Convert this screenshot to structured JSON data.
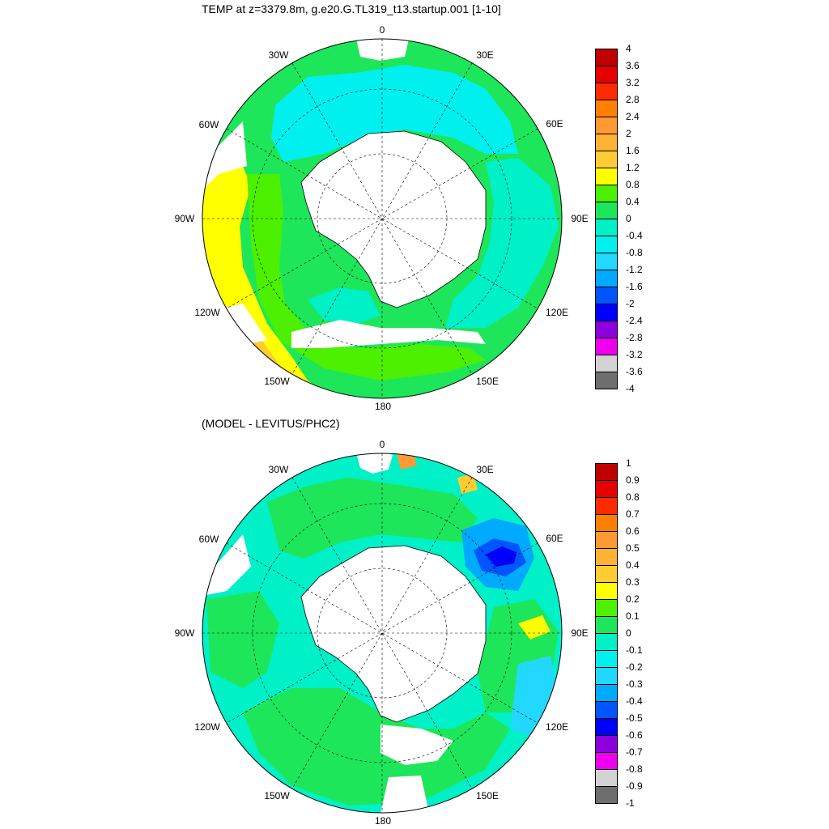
{
  "top_panel": {
    "title": "TEMP at z=3379.8m, g.e20.G.TL319_t13.startup.001 [1-10]",
    "longitude_labels": [
      "0",
      "30E",
      "60E",
      "90E",
      "120E",
      "150E",
      "180",
      "150W",
      "120W",
      "90W",
      "60W",
      "30W"
    ],
    "colorbar": {
      "levels": [
        "4",
        "3.6",
        "3.2",
        "2.8",
        "2.4",
        "2",
        "1.6",
        "1.2",
        "0.8",
        "0.4",
        "0",
        "-0.4",
        "-0.8",
        "-1.2",
        "-1.6",
        "-2",
        "-2.4",
        "-2.8",
        "-3.2",
        "-3.6",
        "-4"
      ],
      "colors": [
        "#c00000",
        "#e60000",
        "#ff2a00",
        "#ff8000",
        "#ff9933",
        "#ffb233",
        "#ffcc33",
        "#ffff00",
        "#4df000",
        "#1ee65a",
        "#00f0c8",
        "#00f0f0",
        "#22d8ff",
        "#00aaff",
        "#0055ff",
        "#0000ff",
        "#8c00dd",
        "#ee00ee",
        "#d2d2d2",
        "#6e6e6e"
      ]
    }
  },
  "bottom_panel": {
    "title": "(MODEL - LEVITUS/PHC2)",
    "longitude_labels": [
      "0",
      "30E",
      "60E",
      "90E",
      "120E",
      "150E",
      "180",
      "150W",
      "120W",
      "90W",
      "60W",
      "30W"
    ],
    "colorbar": {
      "levels": [
        "1",
        "0.9",
        "0.8",
        "0.7",
        "0.6",
        "0.5",
        "0.4",
        "0.3",
        "0.2",
        "0.1",
        "0",
        "-0.1",
        "-0.2",
        "-0.3",
        "-0.4",
        "-0.5",
        "-0.6",
        "-0.7",
        "-0.8",
        "-0.9",
        "-1"
      ],
      "colors": [
        "#c00000",
        "#e60000",
        "#ff2a00",
        "#ff8000",
        "#ff9933",
        "#ffb233",
        "#ffcc33",
        "#ffff00",
        "#4df000",
        "#1ee65a",
        "#00f0c8",
        "#00f0f0",
        "#22d8ff",
        "#00aaff",
        "#0055ff",
        "#0000ff",
        "#8c00dd",
        "#ee00ee",
        "#d2d2d2",
        "#6e6e6e"
      ]
    }
  },
  "colors": {
    "land": "#ffffff",
    "coast": "#000000",
    "grid": "#000000"
  }
}
